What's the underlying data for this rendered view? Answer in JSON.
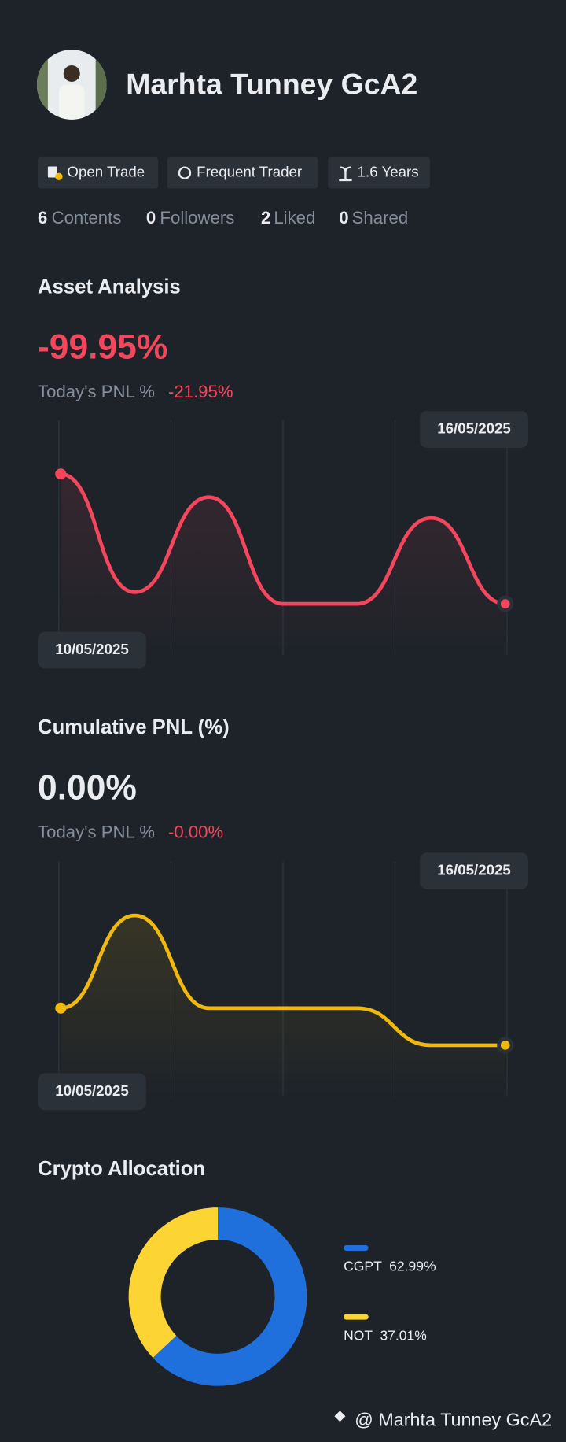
{
  "profile": {
    "name": "Marhta Tunney GcA2",
    "tags": [
      "Open Trade",
      "Frequent Trader",
      "1.6 Years"
    ],
    "stats": [
      {
        "count": 6,
        "label": "Contents"
      },
      {
        "count": 0,
        "label": "Followers"
      },
      {
        "count": 2,
        "label": "Liked"
      },
      {
        "count": 0,
        "label": "Shared"
      }
    ]
  },
  "asset_analysis": {
    "title": "Asset Analysis",
    "value": "-99.95%",
    "today_label": "Today's PNL %",
    "today_value": "-21.95%",
    "chart": {
      "type": "line",
      "categories": [
        "10/05/2025",
        null,
        null,
        null,
        null,
        null,
        "16/05/2025"
      ],
      "values": [
        78,
        27,
        68,
        22,
        22,
        59,
        22
      ],
      "color": "#f6465d",
      "ylim": [
        0,
        100
      ]
    }
  },
  "cumulative_pnl": {
    "title": "Cumulative PNL (%)",
    "value": "0.00%",
    "today_label": "Today's PNL %",
    "today_value": "-0.00%",
    "chart": {
      "type": "line",
      "categories": [
        "10/05/2025",
        null,
        null,
        null,
        null,
        null,
        "16/05/2025"
      ],
      "values": [
        38,
        78,
        38,
        38,
        38,
        22,
        22
      ],
      "color": "#f0b90b",
      "ylim": [
        0,
        100
      ]
    }
  },
  "crypto_allocation": {
    "title": "Crypto Allocation",
    "chart": {
      "type": "pie",
      "categories": [
        "CGPT",
        "NOT"
      ],
      "values": [
        62.99,
        37.01
      ],
      "value_labels": [
        "62.99%",
        "37.01%"
      ],
      "colors": [
        "#1f6fdc",
        "#fcd535"
      ]
    }
  },
  "footer": {
    "handle": "@ Marhta Tunney GcA2"
  }
}
